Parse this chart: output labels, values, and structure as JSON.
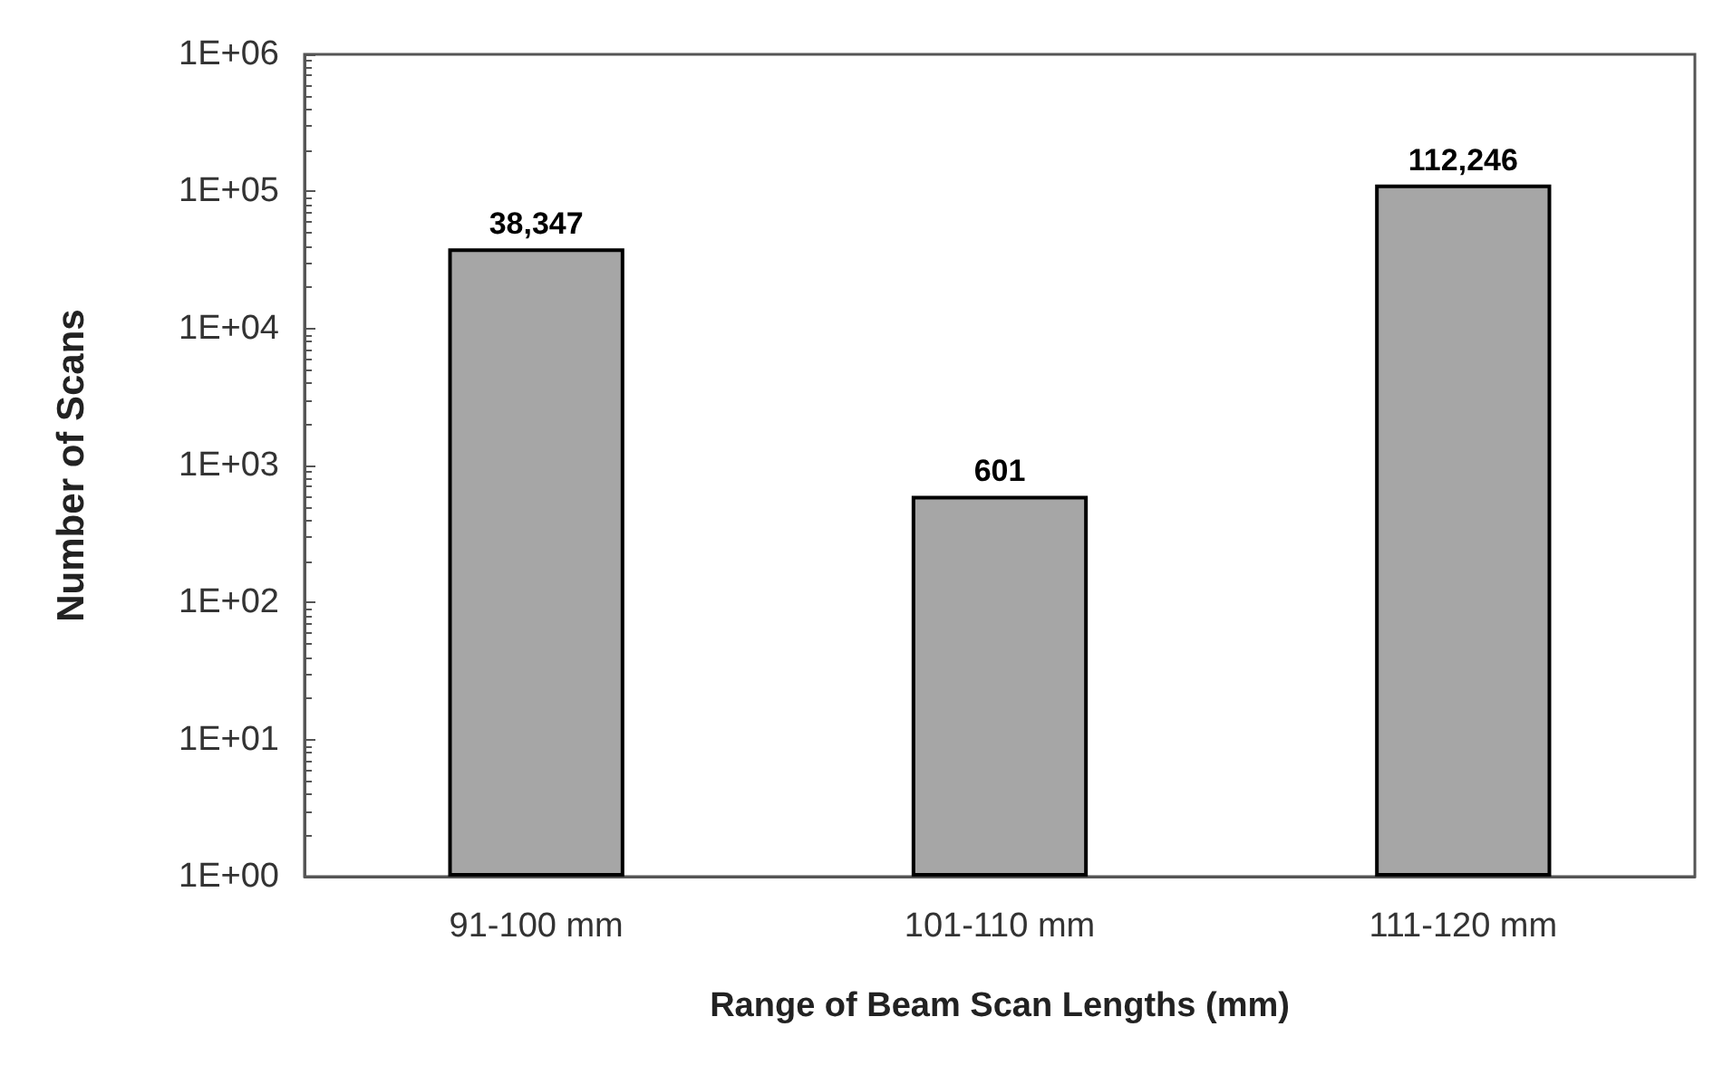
{
  "chart_data": {
    "type": "bar",
    "xlabel": "Range of Beam Scan Lengths (mm)",
    "ylabel": "Number of Scans",
    "categories": [
      "91-100 mm",
      "101-110 mm",
      "111-120 mm"
    ],
    "values": [
      38347,
      601,
      112246
    ],
    "color": "#a6a6a6",
    "value_labels": [
      "38,347",
      "601",
      "112,246"
    ],
    "log": true,
    "ylim": [
      1,
      1000000
    ],
    "yticks": [
      {
        "value": 1,
        "label": "1E+00"
      },
      {
        "value": 10,
        "label": "1E+01"
      },
      {
        "value": 100,
        "label": "1E+02"
      },
      {
        "value": 1000,
        "label": "1E+03"
      },
      {
        "value": 10000,
        "label": "1E+04"
      },
      {
        "value": 100000,
        "label": "1E+05"
      },
      {
        "value": 1000000,
        "label": "1E+06"
      }
    ],
    "grid": false
  }
}
